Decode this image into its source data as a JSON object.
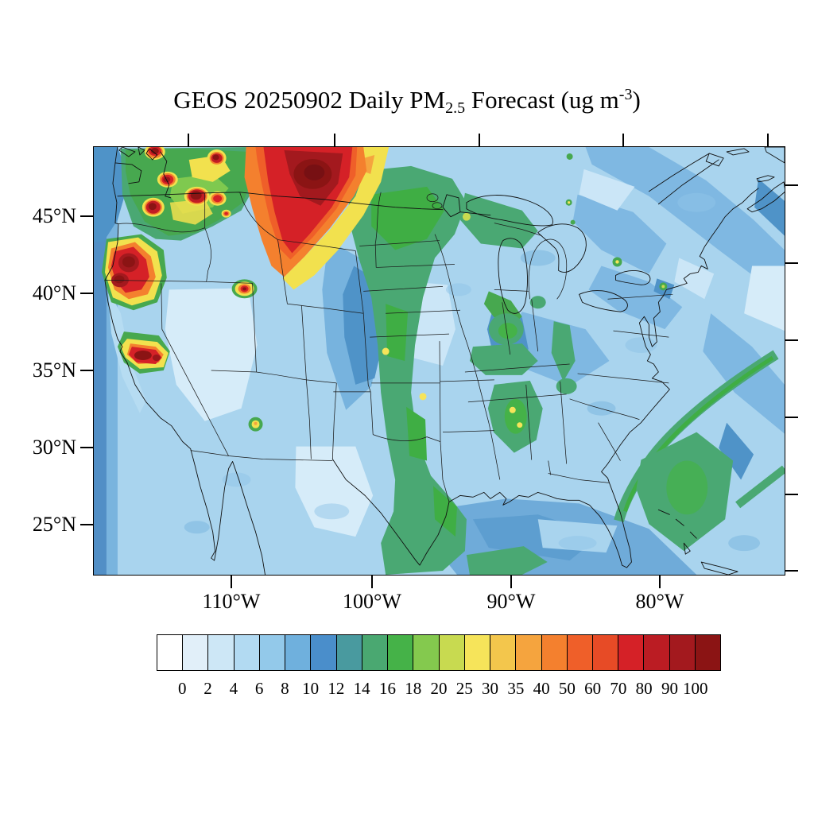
{
  "title": {
    "prefix": "GEOS 20250902 Daily PM",
    "subscript": "2.5",
    "middle": " Forecast (ug m",
    "superscript": "-3",
    "suffix": ")"
  },
  "axes": {
    "lat_labels": [
      "45°N",
      "40°N",
      "35°N",
      "30°N",
      "25°N"
    ],
    "lon_labels": [
      "110°W",
      "100°W",
      "90°W",
      "80°W"
    ]
  },
  "colorbar": {
    "levels": [
      "0",
      "2",
      "4",
      "6",
      "8",
      "10",
      "12",
      "14",
      "16",
      "18",
      "20",
      "25",
      "30",
      "35",
      "40",
      "50",
      "60",
      "70",
      "80",
      "90",
      "100"
    ],
    "colors": [
      "#ffffff",
      "#e1eff9",
      "#cde7f6",
      "#b2daf2",
      "#93c9ea",
      "#6fb0dd",
      "#4a8ecb",
      "#499a9f",
      "#4aa871",
      "#45b248",
      "#84c94e",
      "#c8da50",
      "#f6e45a",
      "#f3c64c",
      "#f5a43e",
      "#f4802e",
      "#ef5f29",
      "#e74b26",
      "#d52127",
      "#bb1c23",
      "#a3191e",
      "#8b1414"
    ]
  },
  "chart_data": {
    "type": "heatmap",
    "title": "GEOS 20250902 Daily PM2.5 Forecast (ug m-3)",
    "model": "GEOS",
    "forecast_date": "20250902",
    "variable": "Daily PM2.5",
    "units": "ug m-3",
    "x_tick_labels": [
      "110°W",
      "100°W",
      "90°W",
      "80°W"
    ],
    "y_tick_labels": [
      "45°N",
      "40°N",
      "35°N",
      "30°N",
      "25°N"
    ],
    "legend_position": "bottom",
    "contour_levels": [
      0,
      2,
      4,
      6,
      8,
      10,
      12,
      14,
      16,
      18,
      20,
      25,
      30,
      35,
      40,
      50,
      60,
      70,
      80,
      90,
      100
    ],
    "palette": [
      "#ffffff",
      "#e1eff9",
      "#cde7f6",
      "#b2daf2",
      "#93c9ea",
      "#6fb0dd",
      "#4a8ecb",
      "#499a9f",
      "#4aa871",
      "#45b248",
      "#84c94e",
      "#c8da50",
      "#f6e45a",
      "#f3c64c",
      "#f5a43e",
      "#f4802e",
      "#ef5f29",
      "#e74b26",
      "#d52127",
      "#bb1c23",
      "#a3191e",
      "#8b1414"
    ],
    "features": [
      {
        "region": "Northern Montana / western Dakotas plume",
        "value_ug_m3": "40 to >100 (dark-red core >100)"
      },
      {
        "region": "NE Washington / Idaho panhandle fire hotspots",
        "value_ug_m3": "60 to >100 (multiple small cores)"
      },
      {
        "region": "SW Oregon / NW California blob",
        "value_ug_m3": "70 to >100"
      },
      {
        "region": "Central California (Sierra foothills) streak",
        "value_ug_m3": "60 to >100"
      },
      {
        "region": "NE Nevada / Utah border spot",
        "value_ug_m3": "40-70"
      },
      {
        "region": "Pacific Northwest background (WA/ID green zone)",
        "value_ug_m3": "14-25"
      },
      {
        "region": "Central plains band (MN-NE-KS-OK-east TX to Gulf coast)",
        "value_ug_m3": "12-20, yellow specks 25-30"
      },
      {
        "region": "Tennessee / Mississippi / Alabama patches",
        "value_ug_m3": "12-18 with 25-30 specks"
      },
      {
        "region": "Atlantic offshore green streak along SE coast",
        "value_ug_m3": "12-16"
      },
      {
        "region": "Eastern US / Great Lakes background",
        "value_ug_m3": "4-10"
      },
      {
        "region": "Interior West / SW deserts and west Texas",
        "value_ug_m3": "2-6"
      },
      {
        "region": "Oceans / Gulf of Mexico background",
        "value_ug_m3": "2-8"
      }
    ]
  }
}
